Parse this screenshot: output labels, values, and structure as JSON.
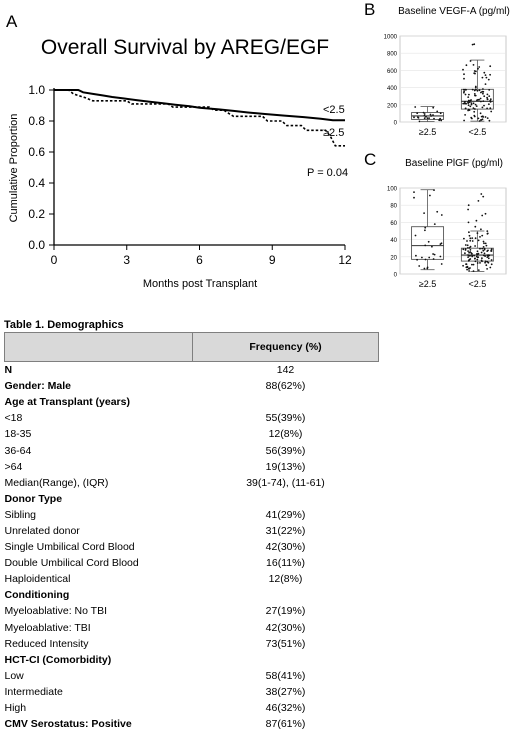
{
  "panels": {
    "a": "A",
    "b": "B",
    "c": "C"
  },
  "chart_data": [
    {
      "type": "line",
      "subtype": "step",
      "title": "Overall Survival by AREG/EGF",
      "xlabel": "Months post Transplant",
      "ylabel": "Cumulative Proportion",
      "xlim": [
        0,
        12
      ],
      "ylim": [
        0.0,
        1.0
      ],
      "x_ticks": [
        "0",
        "3",
        "6",
        "9",
        "12"
      ],
      "y_ticks": [
        "0.0",
        "0.2",
        "0.4",
        "0.6",
        "0.8",
        "1.0"
      ],
      "annotation": "P = 0.04",
      "series": [
        {
          "name": "<2.5",
          "style": "solid",
          "points": [
            [
              0,
              1.0
            ],
            [
              1.0,
              1.0
            ],
            [
              1.2,
              0.985
            ],
            [
              1.6,
              0.975
            ],
            [
              2.0,
              0.965
            ],
            [
              2.4,
              0.955
            ],
            [
              2.9,
              0.945
            ],
            [
              3.4,
              0.935
            ],
            [
              3.9,
              0.925
            ],
            [
              4.5,
              0.915
            ],
            [
              5.0,
              0.905
            ],
            [
              5.6,
              0.895
            ],
            [
              6.0,
              0.885
            ],
            [
              6.8,
              0.875
            ],
            [
              7.4,
              0.865
            ],
            [
              8.0,
              0.855
            ],
            [
              8.7,
              0.845
            ],
            [
              9.5,
              0.835
            ],
            [
              10.3,
              0.825
            ],
            [
              11.0,
              0.815
            ],
            [
              11.5,
              0.805
            ],
            [
              12.0,
              0.805
            ]
          ]
        },
        {
          "name": "≥2.5",
          "style": "dashed",
          "points": [
            [
              0,
              1.0
            ],
            [
              0.6,
              1.0
            ],
            [
              0.8,
              0.975
            ],
            [
              1.3,
              0.95
            ],
            [
              1.6,
              0.93
            ],
            [
              3.0,
              0.93
            ],
            [
              3.2,
              0.91
            ],
            [
              4.7,
              0.91
            ],
            [
              4.9,
              0.89
            ],
            [
              6.4,
              0.89
            ],
            [
              6.6,
              0.87
            ],
            [
              7.0,
              0.87
            ],
            [
              7.2,
              0.85
            ],
            [
              7.4,
              0.83
            ],
            [
              8.6,
              0.83
            ],
            [
              8.8,
              0.8
            ],
            [
              9.4,
              0.8
            ],
            [
              9.6,
              0.77
            ],
            [
              10.2,
              0.77
            ],
            [
              10.4,
              0.74
            ],
            [
              11.2,
              0.74
            ],
            [
              11.4,
              0.7
            ],
            [
              11.6,
              0.64
            ],
            [
              12.0,
              0.64
            ]
          ]
        }
      ]
    },
    {
      "type": "scatter",
      "subtype": "box",
      "title": "Baseline VEGF-A (pg/ml)",
      "categories": [
        "≥2.5",
        "<2.5"
      ],
      "ylim": [
        0,
        1000
      ],
      "y_ticks": [
        "0",
        "200",
        "400",
        "600",
        "800",
        "1000"
      ],
      "boxes": [
        {
          "category": "≥2.5",
          "min": 5,
          "q1": 30,
          "median": 70,
          "q3": 110,
          "max": 180
        },
        {
          "category": "<2.5",
          "min": 10,
          "q1": 150,
          "median": 240,
          "q3": 380,
          "max": 720
        }
      ],
      "points_per_group": [
        24,
        110
      ],
      "outliers": {
        "<2.5": [
          900,
          905
        ]
      }
    },
    {
      "type": "scatter",
      "subtype": "box",
      "title": "Baseline PlGF (pg/ml)",
      "categories": [
        "≥2.5",
        "<2.5"
      ],
      "ylim": [
        0,
        100
      ],
      "y_ticks": [
        "0",
        "20",
        "40",
        "60",
        "80",
        "100"
      ],
      "boxes": [
        {
          "category": "≥2.5",
          "min": 5,
          "q1": 17,
          "median": 33,
          "q3": 55,
          "max": 98
        },
        {
          "category": "<2.5",
          "min": 3,
          "q1": 15,
          "median": 22,
          "q3": 30,
          "max": 50
        }
      ],
      "points_per_group": [
        30,
        110
      ],
      "outliers": {
        "<2.5": [
          52,
          55,
          60,
          62,
          68,
          70,
          75,
          80,
          85,
          90,
          93
        ]
      }
    }
  ],
  "table": {
    "title": "Table 1. Demographics",
    "header": [
      "",
      "Frequency (%)"
    ],
    "rows": [
      {
        "label": "N",
        "value": "142",
        "kind": "sec"
      },
      {
        "label": "Gender: Male",
        "value": "88(62%)",
        "kind": "sec"
      },
      {
        "label": "Age at Transplant (years)",
        "value": "",
        "kind": "sec"
      },
      {
        "label": "<18",
        "value": "55(39%)",
        "kind": "sub"
      },
      {
        "label": "18-35",
        "value": "12(8%)",
        "kind": "sub"
      },
      {
        "label": "36-64",
        "value": "56(39%)",
        "kind": "sub"
      },
      {
        "label": ">64",
        "value": "19(13%)",
        "kind": "sub"
      },
      {
        "label": "Median(Range), (IQR)",
        "value": "39(1-74), (11-61)",
        "kind": "sub"
      },
      {
        "label": "Donor Type",
        "value": "",
        "kind": "sec"
      },
      {
        "label": "Sibling",
        "value": "41(29%)",
        "kind": "sub"
      },
      {
        "label": "Unrelated donor",
        "value": "31(22%)",
        "kind": "sub"
      },
      {
        "label": "Single Umbilical Cord Blood",
        "value": "42(30%)",
        "kind": "sub"
      },
      {
        "label": "Double Umbilical Cord Blood",
        "value": "16(11%)",
        "kind": "sub"
      },
      {
        "label": "Haploidentical",
        "value": "12(8%)",
        "kind": "sub"
      },
      {
        "label": "Conditioning",
        "value": "",
        "kind": "sec"
      },
      {
        "label": "Myeloablative: No TBI",
        "value": "27(19%)",
        "kind": "sub"
      },
      {
        "label": "Myeloablative: TBI",
        "value": "42(30%)",
        "kind": "sub"
      },
      {
        "label": "Reduced Intensity",
        "value": "73(51%)",
        "kind": "sub"
      },
      {
        "label": "HCT-CI (Comorbidity)",
        "value": "",
        "kind": "sec"
      },
      {
        "label": "Low",
        "value": "58(41%)",
        "kind": "sub"
      },
      {
        "label": "Intermediate",
        "value": "38(27%)",
        "kind": "sub"
      },
      {
        "label": "High",
        "value": "46(32%)",
        "kind": "sub"
      },
      {
        "label": "CMV Serostatus: Positive",
        "value": "87(61%)",
        "kind": "sec"
      }
    ]
  }
}
